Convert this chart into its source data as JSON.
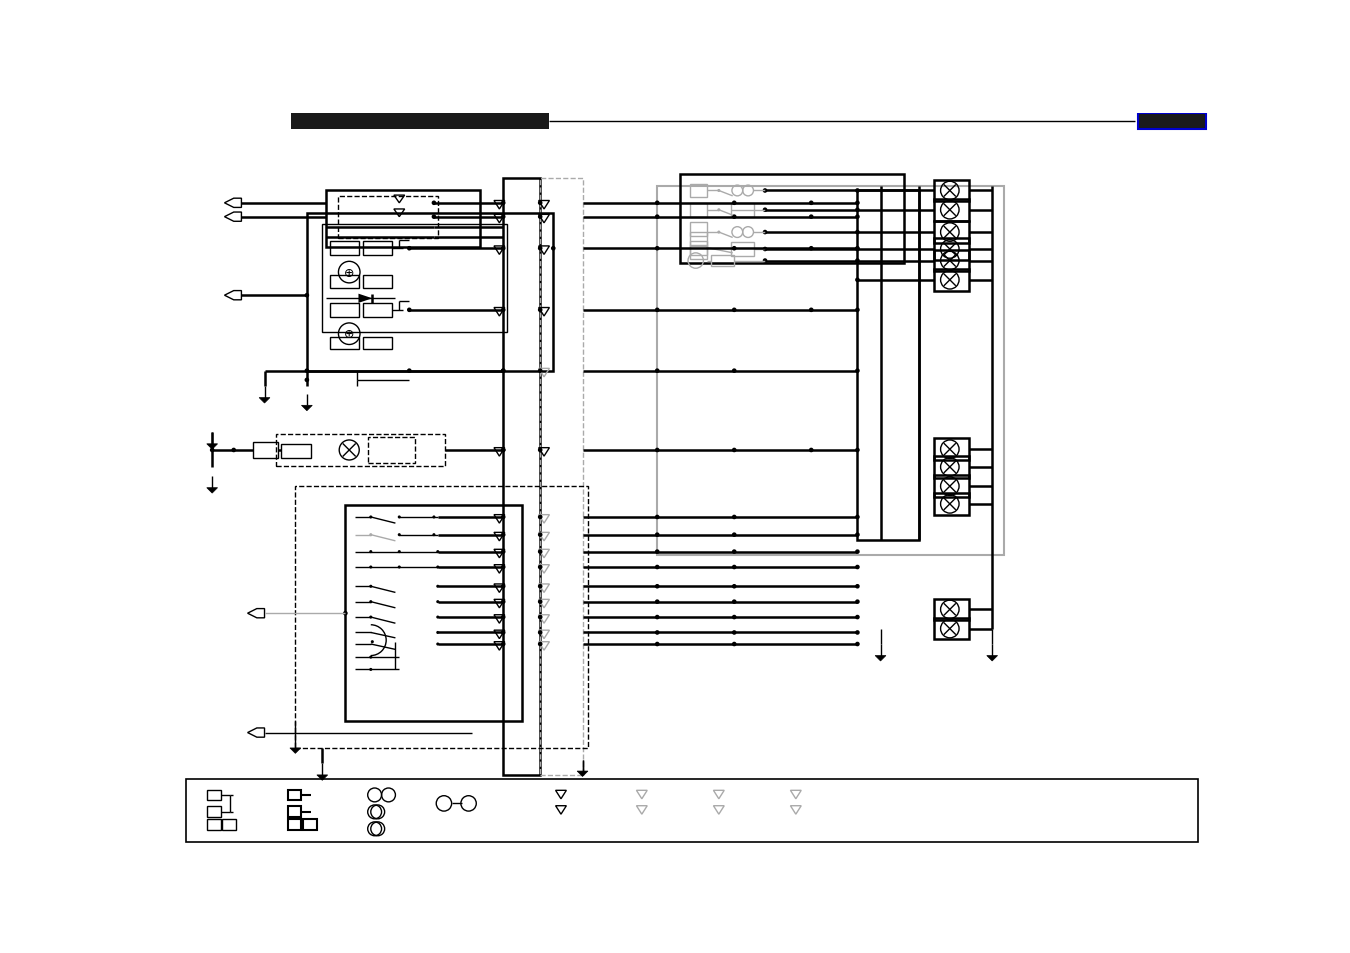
{
  "bg_color": "#ffffff",
  "lc": "#000000",
  "glc": "#aaaaaa",
  "lw1": 1.0,
  "lw2": 1.8,
  "lw3": 2.5
}
